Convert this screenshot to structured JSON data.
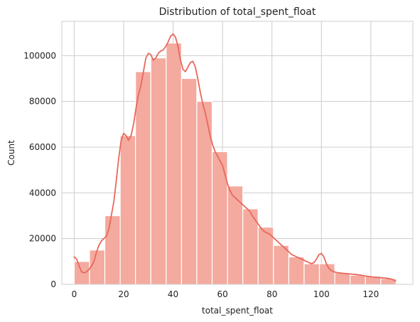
{
  "chart_data": {
    "type": "bar",
    "title": "Distribution of total_spent_float",
    "xlabel": "total_spent_float",
    "ylabel": "Count",
    "xlim": [
      -5,
      137
    ],
    "ylim": [
      0,
      115000
    ],
    "xticks": [
      0,
      20,
      40,
      60,
      80,
      100,
      120
    ],
    "yticks": [
      0,
      20000,
      40000,
      60000,
      80000,
      100000
    ],
    "grid": true,
    "bin_width": 6.2,
    "bins": [
      {
        "start": 0.0,
        "count": 10000
      },
      {
        "start": 6.2,
        "count": 15000
      },
      {
        "start": 12.4,
        "count": 30000
      },
      {
        "start": 18.6,
        "count": 65000
      },
      {
        "start": 24.8,
        "count": 93000
      },
      {
        "start": 31.0,
        "count": 99000
      },
      {
        "start": 37.2,
        "count": 105500
      },
      {
        "start": 43.4,
        "count": 90000
      },
      {
        "start": 49.6,
        "count": 80000
      },
      {
        "start": 55.8,
        "count": 58000
      },
      {
        "start": 62.0,
        "count": 43000
      },
      {
        "start": 68.2,
        "count": 33000
      },
      {
        "start": 74.4,
        "count": 25000
      },
      {
        "start": 80.6,
        "count": 17000
      },
      {
        "start": 86.8,
        "count": 12000
      },
      {
        "start": 93.0,
        "count": 9000
      },
      {
        "start": 99.2,
        "count": 9000
      },
      {
        "start": 105.4,
        "count": 5000
      },
      {
        "start": 111.6,
        "count": 4000
      },
      {
        "start": 117.8,
        "count": 3500
      },
      {
        "start": 124.0,
        "count": 2500
      }
    ],
    "kde": [
      [
        0,
        12000
      ],
      [
        1,
        11000
      ],
      [
        2,
        8000
      ],
      [
        3,
        5500
      ],
      [
        4,
        5000
      ],
      [
        5,
        5500
      ],
      [
        6,
        6500
      ],
      [
        7,
        8000
      ],
      [
        8,
        10000
      ],
      [
        9,
        14000
      ],
      [
        10,
        17000
      ],
      [
        11,
        19000
      ],
      [
        12,
        20000
      ],
      [
        13,
        21000
      ],
      [
        14,
        24000
      ],
      [
        15,
        30000
      ],
      [
        16,
        36000
      ],
      [
        17,
        45000
      ],
      [
        18,
        55000
      ],
      [
        19,
        63000
      ],
      [
        20,
        66000
      ],
      [
        21,
        65000
      ],
      [
        22,
        63000
      ],
      [
        23,
        65000
      ],
      [
        24,
        70000
      ],
      [
        25,
        77000
      ],
      [
        26,
        83000
      ],
      [
        27,
        87000
      ],
      [
        28,
        93000
      ],
      [
        29,
        99000
      ],
      [
        30,
        101000
      ],
      [
        31,
        100500
      ],
      [
        32,
        98000
      ],
      [
        33,
        99000
      ],
      [
        34,
        101000
      ],
      [
        35,
        102000
      ],
      [
        36,
        102500
      ],
      [
        37,
        104000
      ],
      [
        38,
        106000
      ],
      [
        39,
        108500
      ],
      [
        40,
        109500
      ],
      [
        41,
        108000
      ],
      [
        42,
        104000
      ],
      [
        43,
        98000
      ],
      [
        44,
        94000
      ],
      [
        45,
        93000
      ],
      [
        46,
        95000
      ],
      [
        47,
        97000
      ],
      [
        48,
        97500
      ],
      [
        49,
        95000
      ],
      [
        50,
        90000
      ],
      [
        51,
        84000
      ],
      [
        52,
        79000
      ],
      [
        53,
        75000
      ],
      [
        54,
        70000
      ],
      [
        55,
        65000
      ],
      [
        56,
        61000
      ],
      [
        57,
        58000
      ],
      [
        58,
        56000
      ],
      [
        59,
        54000
      ],
      [
        60,
        52000
      ],
      [
        61,
        48000
      ],
      [
        62,
        44000
      ],
      [
        63,
        41000
      ],
      [
        64,
        39000
      ],
      [
        65,
        38000
      ],
      [
        66,
        37000
      ],
      [
        67,
        36000
      ],
      [
        68,
        35000
      ],
      [
        69,
        34000
      ],
      [
        70,
        33000
      ],
      [
        71,
        32000
      ],
      [
        72,
        30000
      ],
      [
        73,
        28500
      ],
      [
        74,
        27000
      ],
      [
        75,
        25500
      ],
      [
        76,
        24000
      ],
      [
        77,
        23000
      ],
      [
        78,
        22500
      ],
      [
        79,
        22000
      ],
      [
        80,
        21000
      ],
      [
        81,
        20000
      ],
      [
        82,
        19000
      ],
      [
        83,
        18000
      ],
      [
        84,
        17000
      ],
      [
        85,
        16000
      ],
      [
        86,
        15000
      ],
      [
        87,
        14000
      ],
      [
        88,
        13000
      ],
      [
        89,
        12500
      ],
      [
        90,
        12000
      ],
      [
        91,
        11500
      ],
      [
        92,
        11000
      ],
      [
        93,
        10500
      ],
      [
        94,
        10000
      ],
      [
        95,
        9500
      ],
      [
        96,
        9000
      ],
      [
        97,
        9500
      ],
      [
        98,
        11000
      ],
      [
        99,
        13000
      ],
      [
        100,
        13500
      ],
      [
        101,
        12000
      ],
      [
        102,
        9000
      ],
      [
        103,
        7000
      ],
      [
        104,
        6000
      ],
      [
        105,
        5500
      ],
      [
        106,
        5200
      ],
      [
        107,
        5000
      ],
      [
        108,
        4900
      ],
      [
        109,
        4800
      ],
      [
        110,
        4700
      ],
      [
        112,
        4500
      ],
      [
        114,
        4300
      ],
      [
        116,
        4000
      ],
      [
        118,
        3600
      ],
      [
        120,
        3300
      ],
      [
        122,
        3100
      ],
      [
        124,
        2900
      ],
      [
        126,
        2700
      ],
      [
        128,
        2400
      ],
      [
        129,
        2000
      ],
      [
        130,
        1500
      ]
    ],
    "colors": {
      "bar_fill": "#f4aa9f",
      "kde_line": "#e8685c"
    }
  }
}
